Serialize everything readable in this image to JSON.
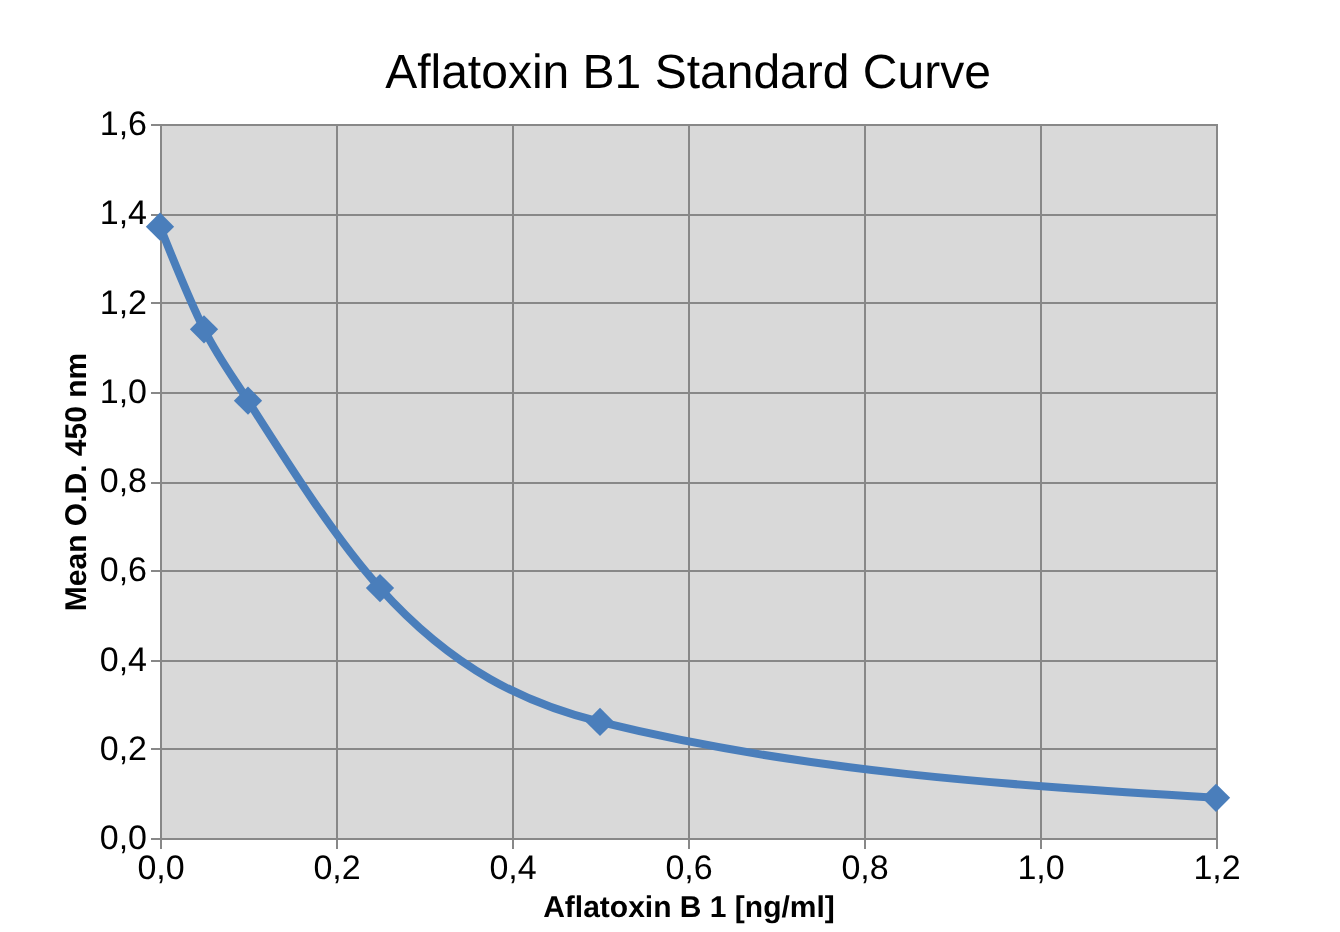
{
  "chart_data": {
    "type": "line",
    "title": "Aflatoxin B1 Standard Curve",
    "xlabel": "Aflatoxin B 1 [ng/ml]",
    "ylabel": "Mean O.D. 450 nm",
    "x": [
      0,
      0.05,
      0.1,
      0.25,
      0.5,
      1.2
    ],
    "series": [
      {
        "color": "#4a7ebb",
        "values": [
          1.37,
          1.14,
          0.98,
          0.56,
          0.26,
          0.09
        ]
      }
    ],
    "xlim": [
      0,
      1.2
    ],
    "ylim": [
      0,
      1.6
    ],
    "xticks": [
      {
        "value": 0,
        "label": "0,0"
      },
      {
        "value": 0.2,
        "label": "0,2"
      },
      {
        "value": 0.4,
        "label": "0,4"
      },
      {
        "value": 0.6,
        "label": "0,6"
      },
      {
        "value": 0.8,
        "label": "0,8"
      },
      {
        "value": 1.0,
        "label": "1,0"
      },
      {
        "value": 1.2,
        "label": "1,2"
      }
    ],
    "yticks": [
      {
        "value": 0,
        "label": "0,0"
      },
      {
        "value": 0.2,
        "label": "0,2"
      },
      {
        "value": 0.4,
        "label": "0,4"
      },
      {
        "value": 0.6,
        "label": "0,6"
      },
      {
        "value": 0.8,
        "label": "0,8"
      },
      {
        "value": 1.0,
        "label": "1,0"
      },
      {
        "value": 1.2,
        "label": "1,2"
      },
      {
        "value": 1.4,
        "label": "1,4"
      },
      {
        "value": 1.6,
        "label": "1,6"
      }
    ],
    "grid": true,
    "marker": "diamond",
    "line_style": "solid"
  }
}
